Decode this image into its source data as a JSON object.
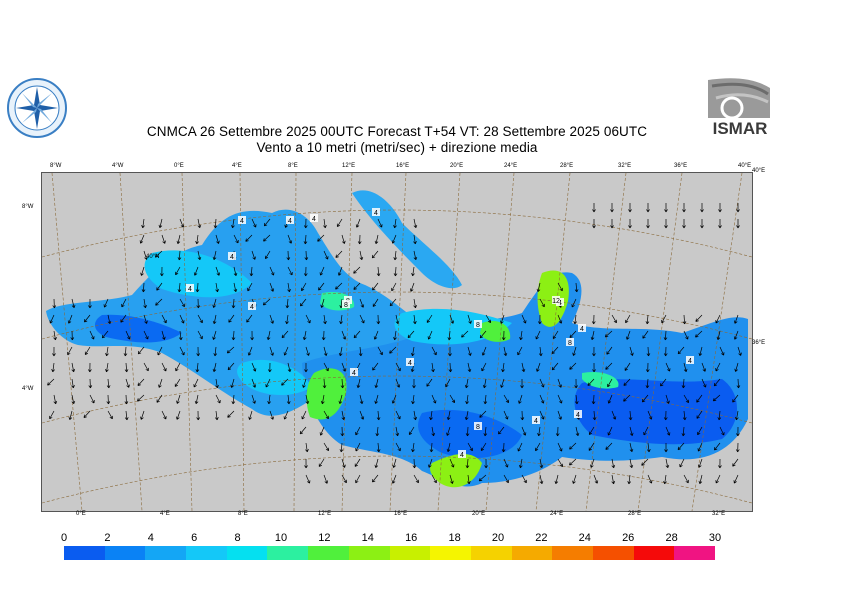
{
  "header": {
    "title_line1": "CNMCA 26 Settembre 2025 00UTC Forecast T+54 VT: 28 Settembre 2025 06UTC",
    "title_line2": "Vento a 10 metri (metri/sec) + direzione media",
    "logo_right_text": "ISMAR"
  },
  "map": {
    "top_lon_labels": [
      "8°W",
      "4°W",
      "0°E",
      "4°E",
      "8°E",
      "12°E",
      "16°E",
      "20°E",
      "24°E",
      "28°E",
      "32°E",
      "36°E",
      "40°E"
    ],
    "bottom_lon_labels": [
      "0°E",
      "4°E",
      "8°E",
      "12°E",
      "16°E",
      "20°E",
      "24°E",
      "28°E",
      "32°E"
    ],
    "left_lat_labels": [
      "8°W",
      "40°N",
      "4°W"
    ],
    "right_lat_labels": [
      "40°E",
      "36°E"
    ],
    "contour_labels": [
      "4",
      "4",
      "4",
      "8",
      "4",
      "4",
      "4",
      "4",
      "8",
      "8",
      "4",
      "4",
      "4",
      "8",
      "4",
      "4",
      "4",
      "12",
      "8",
      "4",
      "4"
    ],
    "colors": {
      "land": "#c9c9c9",
      "grid": "#8a6a3a",
      "arrow": "#000000"
    }
  },
  "legend": {
    "labels": [
      "0",
      "2",
      "4",
      "6",
      "8",
      "10",
      "12",
      "14",
      "16",
      "18",
      "20",
      "22",
      "24",
      "26",
      "28",
      "30"
    ],
    "colors": [
      "#0a5cf0",
      "#0a82f5",
      "#14a6f5",
      "#14c8f8",
      "#05e0f0",
      "#2cf0a0",
      "#50f03c",
      "#8cf014",
      "#c8f000",
      "#f5f500",
      "#f5d200",
      "#f5aa00",
      "#f57d00",
      "#f55000",
      "#f50a0a",
      "#f01482"
    ]
  }
}
